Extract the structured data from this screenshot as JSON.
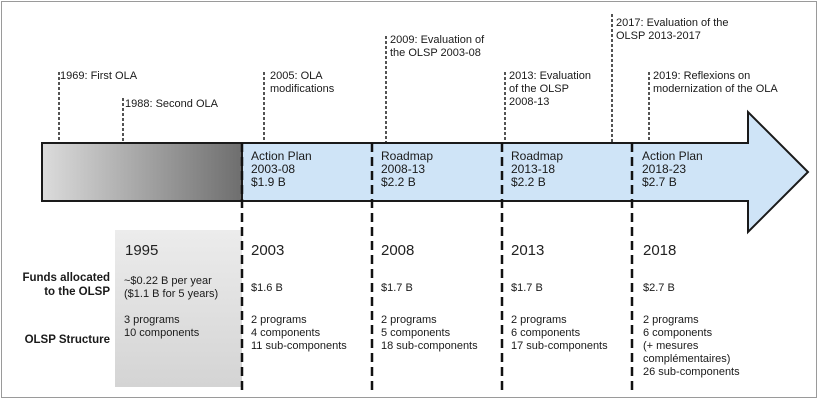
{
  "events": [
    {
      "text": "1969: First OLA"
    },
    {
      "text": "1988: Second OLA"
    },
    {
      "text": "2005: OLA\nmodifications"
    },
    {
      "text": "2009: Evaluation of\nthe OLSP 2003-08"
    },
    {
      "text": "2013: Evaluation\nof the OLSP\n2008-13"
    },
    {
      "text": "2017: Evaluation of the\nOLSP 2013-2017"
    },
    {
      "text": "2019: Reflexions on\nmodernization of the OLA"
    }
  ],
  "plans": [
    {
      "text": "Action Plan\n2003-08\n$1.9 B"
    },
    {
      "text": "Roadmap\n2008-13\n$2.2 B"
    },
    {
      "text": "Roadmap\n2013-18\n$2.2 B"
    },
    {
      "text": "Action Plan\n2018-23\n$2.7 B"
    }
  ],
  "row_labels": {
    "funds": "Funds allocated\nto the OLSP",
    "structure": "OLSP Structure"
  },
  "periods": [
    {
      "year": "1995",
      "funds": "~$0.22 B per year\n($1.1 B for 5 years)",
      "structure": "3 programs\n10 components"
    },
    {
      "year": "2003",
      "funds": "$1.6 B",
      "structure": "2 programs\n4 components\n11 sub-components"
    },
    {
      "year": "2008",
      "funds": "$1.7 B",
      "structure": "2 programs\n5 components\n18 sub-components"
    },
    {
      "year": "2013",
      "funds": "$1.7 B",
      "structure": "2 programs\n6 components\n17 sub-components"
    },
    {
      "year": "2018",
      "funds": "$2.7 B",
      "structure": "2 programs\n6 components\n(+ mesures\ncomplémentaires)\n26 sub-components"
    }
  ],
  "colors": {
    "arrow_fill": "#cfe4f7",
    "arrow_stroke": "#1a1a1a",
    "gray_start": "#dcdcdc",
    "gray_end": "#6e6e6e"
  }
}
